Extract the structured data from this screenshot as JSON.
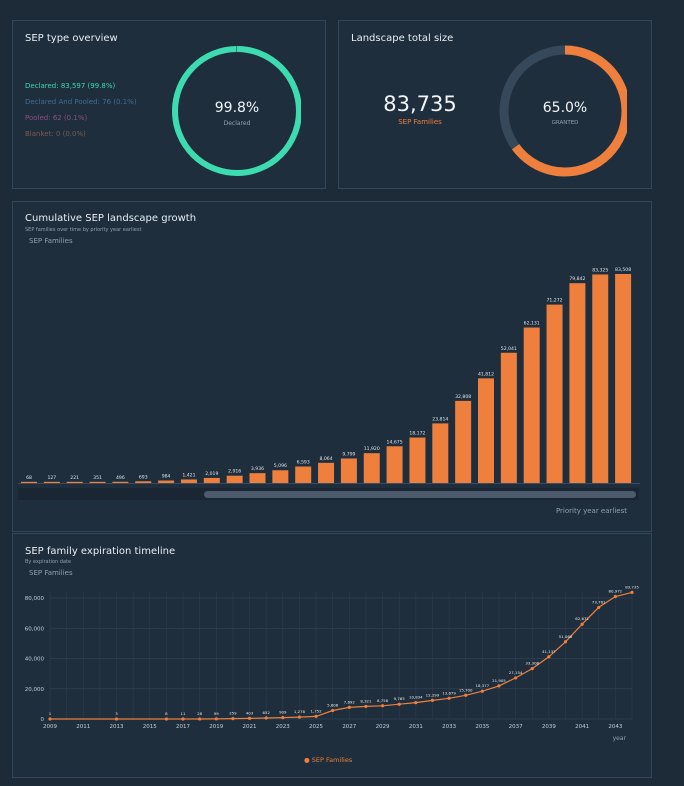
{
  "colors": {
    "bg": "#1d2a37",
    "card": "#1f2e3c",
    "accent": "#ee7f3c",
    "teal": "#3ddbb0",
    "ring_track": "#35495b"
  },
  "sep_type": {
    "title": "SEP type overview",
    "legend": [
      {
        "label": "Declared: 83,597 (99.8%)",
        "color": "#3ddbb0"
      },
      {
        "label": "Declared And Pooled: 76 (0.1%)",
        "color": "#3f6d93"
      },
      {
        "label": "Pooled: 62 (0.1%)",
        "color": "#8f4e85"
      },
      {
        "label": "Blanket: 0 (0.0%)",
        "color": "#7a5b4a"
      }
    ],
    "ring": {
      "value_text": "99.8%",
      "label": "Declared",
      "fraction": 0.998
    }
  },
  "landscape": {
    "title": "Landscape total size",
    "total": "83,735",
    "total_label": "SEP Families",
    "ring": {
      "value_text": "65.0%",
      "label": "GRANTED",
      "fraction": 0.65
    }
  },
  "chart_data": [
    {
      "type": "bar",
      "title": "Cumulative SEP landscape growth",
      "subtitle": "SEP families over time by priority year earliest",
      "ylabel": "SEP Families",
      "xlabel": "Priority year earliest",
      "series_name": "SEP Families",
      "values": [
        68,
        127,
        221,
        351,
        496,
        693,
        984,
        1421,
        2019,
        2916,
        3936,
        5096,
        6593,
        8064,
        9799,
        11920,
        14675,
        18172,
        23814,
        32808,
        41812,
        52041,
        62131,
        71272,
        79842,
        83325,
        83508
      ],
      "labels": [
        "68",
        "127",
        "221",
        "351",
        "496",
        "693",
        "984",
        "1,421",
        "2,019",
        "2,916",
        "3,936",
        "5,096",
        "6,593",
        "8,064",
        "9,799",
        "11,920",
        "14,675",
        "18,172",
        "23,814",
        "32,808",
        "41,812",
        "52,041",
        "62,131",
        "71,272",
        "79,842",
        "83,325",
        "83,508"
      ],
      "ylim": [
        0,
        83508
      ]
    },
    {
      "type": "line",
      "title": "SEP family expiration timeline",
      "subtitle": "By expiration date",
      "ylabel": "SEP Families",
      "xlabel": "year",
      "legend": "SEP Families",
      "ylim": [
        0,
        80000
      ],
      "yticks": [
        0,
        20000,
        40000,
        60000,
        80000
      ],
      "ytick_labels": [
        "0",
        "20,000",
        "40,000",
        "60,000",
        "80,000"
      ],
      "xlim": [
        2009,
        2044
      ],
      "xticks": [
        2009,
        2011,
        2013,
        2015,
        2017,
        2019,
        2021,
        2023,
        2025,
        2027,
        2029,
        2031,
        2033,
        2035,
        2037,
        2039,
        2041,
        2043
      ],
      "points": [
        {
          "x": 2009,
          "y": 1,
          "label": "1"
        },
        {
          "x": 2013,
          "y": 3,
          "label": "3"
        },
        {
          "x": 2016,
          "y": 8,
          "label": "8"
        },
        {
          "x": 2017,
          "y": 11,
          "label": "11"
        },
        {
          "x": 2018,
          "y": 28,
          "label": "28"
        },
        {
          "x": 2019,
          "y": 99,
          "label": "99"
        },
        {
          "x": 2020,
          "y": 259,
          "label": "259"
        },
        {
          "x": 2021,
          "y": 403,
          "label": "403"
        },
        {
          "x": 2022,
          "y": 652,
          "label": "652"
        },
        {
          "x": 2023,
          "y": 909,
          "label": "909"
        },
        {
          "x": 2024,
          "y": 1278,
          "label": "1,278"
        },
        {
          "x": 2025,
          "y": 1752,
          "label": "1,752"
        },
        {
          "x": 2026,
          "y": 5606,
          "label": "5,606"
        },
        {
          "x": 2027,
          "y": 7692,
          "label": "7,692"
        },
        {
          "x": 2028,
          "y": 8321,
          "label": "8,321"
        },
        {
          "x": 2029,
          "y": 8758,
          "label": "8,758"
        },
        {
          "x": 2030,
          "y": 9765,
          "label": "9,765"
        },
        {
          "x": 2031,
          "y": 10834,
          "label": "10,834"
        },
        {
          "x": 2032,
          "y": 12299,
          "label": "12,299"
        },
        {
          "x": 2033,
          "y": 13679,
          "label": "13,679"
        },
        {
          "x": 2034,
          "y": 15700,
          "label": "15,700"
        },
        {
          "x": 2035,
          "y": 18377,
          "label": "18,377"
        },
        {
          "x": 2036,
          "y": 21905,
          "label": "21,905"
        },
        {
          "x": 2037,
          "y": 27154,
          "label": "27,154"
        },
        {
          "x": 2038,
          "y": 33308,
          "label": "33,308"
        },
        {
          "x": 2039,
          "y": 41137,
          "label": "41,137"
        },
        {
          "x": 2040,
          "y": 51068,
          "label": "51,068"
        },
        {
          "x": 2041,
          "y": 62671,
          "label": "62,671"
        },
        {
          "x": 2042,
          "y": 73761,
          "label": "73,761"
        },
        {
          "x": 2043,
          "y": 80972,
          "label": "80,972"
        },
        {
          "x": 2044,
          "y": 83735,
          "label": "83,735"
        }
      ]
    }
  ]
}
